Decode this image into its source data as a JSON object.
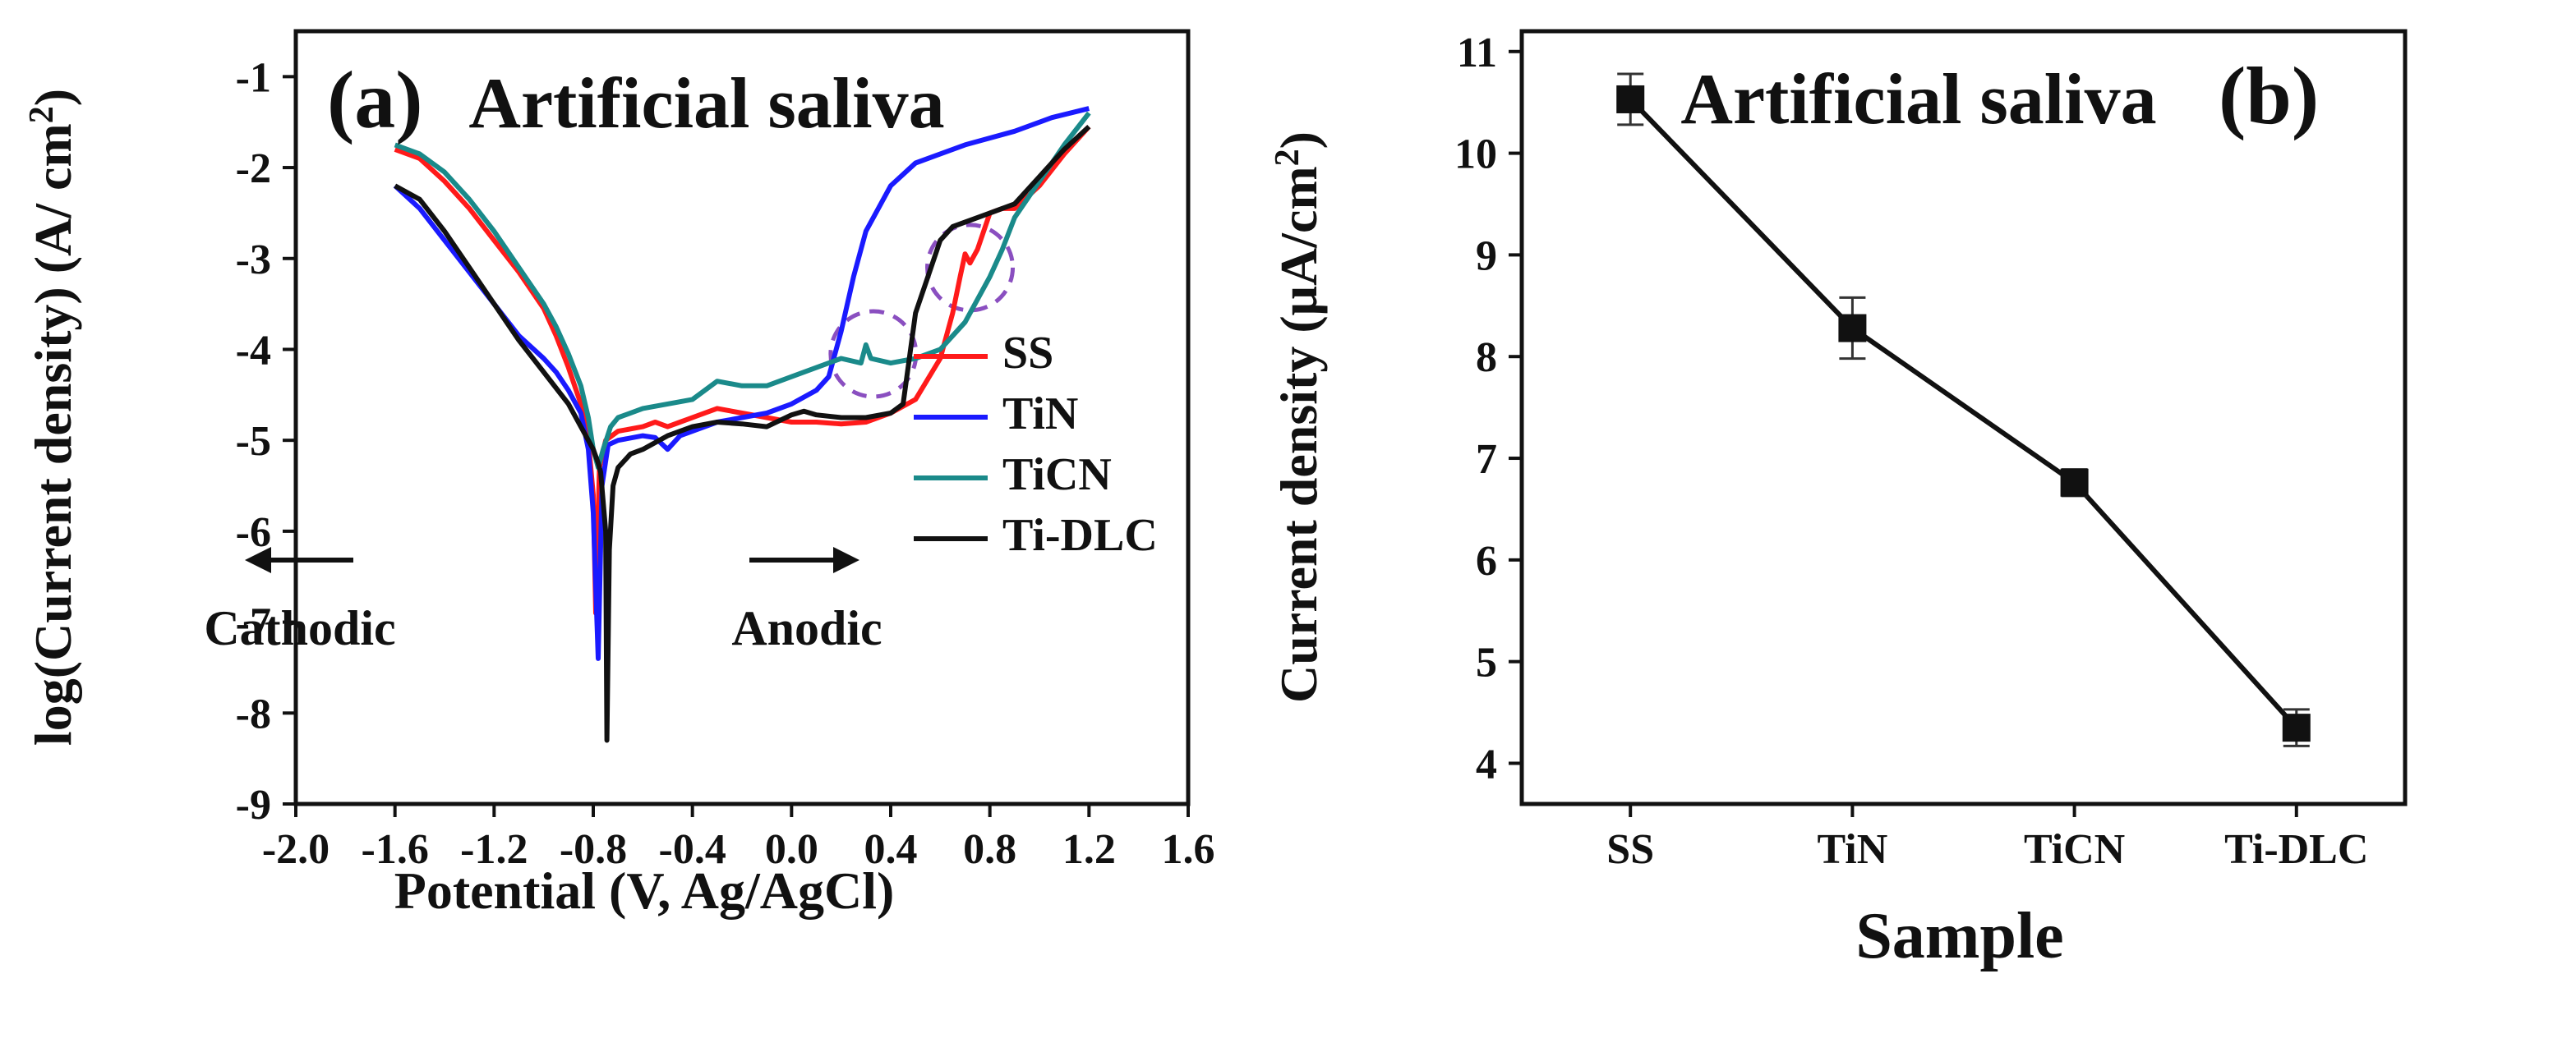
{
  "chart_data": [
    {
      "panel_label": "(a)",
      "title": "Artificial saliva",
      "type": "line",
      "xlabel": "Potential (V, Ag/AgCl)",
      "ylabel_main": "log(Current density) (A/ cm",
      "ylabel_sup": "2",
      "ylabel_end": ")",
      "xlim": [
        -2.0,
        1.6
      ],
      "ylim": [
        -9,
        -0.5
      ],
      "xticks": [
        -2.0,
        -1.6,
        -1.2,
        -0.8,
        -0.4,
        0.0,
        0.4,
        0.8,
        1.2,
        1.6
      ],
      "xtick_labels": [
        "-2.0",
        "-1.6",
        "-1.2",
        "-0.8",
        "-0.4",
        "0.0",
        "0.4",
        "0.8",
        "1.2",
        "1.6"
      ],
      "yticks": [
        -9,
        -8,
        -7,
        -6,
        -5,
        -4,
        -3,
        -2,
        -1
      ],
      "ytick_labels": [
        "-9",
        "-8",
        "-7",
        "-6",
        "-5",
        "-4",
        "-3",
        "-2",
        "-1"
      ],
      "annotations": {
        "cathodic": "Cathodic",
        "anodic": "Anodic"
      },
      "marked_regions": [
        {
          "x": 0.33,
          "y": -4.05
        },
        {
          "x": 0.72,
          "y": -3.1
        }
      ],
      "series": [
        {
          "name": "SS",
          "color": "#ff1a1a",
          "points": [
            [
              -1.6,
              -1.8
            ],
            [
              -1.5,
              -1.9
            ],
            [
              -1.4,
              -2.15
            ],
            [
              -1.3,
              -2.45
            ],
            [
              -1.2,
              -2.8
            ],
            [
              -1.1,
              -3.15
            ],
            [
              -1.0,
              -3.55
            ],
            [
              -0.95,
              -3.85
            ],
            [
              -0.9,
              -4.2
            ],
            [
              -0.85,
              -4.6
            ],
            [
              -0.82,
              -5.0
            ],
            [
              -0.8,
              -5.6
            ],
            [
              -0.79,
              -6.9
            ],
            [
              -0.775,
              -5.3
            ],
            [
              -0.75,
              -5.0
            ],
            [
              -0.7,
              -4.9
            ],
            [
              -0.6,
              -4.85
            ],
            [
              -0.55,
              -4.8
            ],
            [
              -0.5,
              -4.85
            ],
            [
              -0.45,
              -4.8
            ],
            [
              -0.3,
              -4.65
            ],
            [
              -0.2,
              -4.7
            ],
            [
              -0.1,
              -4.75
            ],
            [
              0.0,
              -4.8
            ],
            [
              0.1,
              -4.8
            ],
            [
              0.2,
              -4.82
            ],
            [
              0.3,
              -4.8
            ],
            [
              0.4,
              -4.7
            ],
            [
              0.5,
              -4.55
            ],
            [
              0.6,
              -4.1
            ],
            [
              0.65,
              -3.6
            ],
            [
              0.68,
              -3.2
            ],
            [
              0.7,
              -2.95
            ],
            [
              0.72,
              -3.05
            ],
            [
              0.75,
              -2.9
            ],
            [
              0.8,
              -2.5
            ],
            [
              0.85,
              -2.45
            ],
            [
              0.9,
              -2.45
            ],
            [
              1.0,
              -2.2
            ],
            [
              1.1,
              -1.85
            ],
            [
              1.2,
              -1.55
            ]
          ]
        },
        {
          "name": "TiN",
          "color": "#1a1aff",
          "points": [
            [
              -1.6,
              -2.2
            ],
            [
              -1.5,
              -2.45
            ],
            [
              -1.4,
              -2.8
            ],
            [
              -1.3,
              -3.15
            ],
            [
              -1.2,
              -3.5
            ],
            [
              -1.1,
              -3.85
            ],
            [
              -1.0,
              -4.1
            ],
            [
              -0.95,
              -4.25
            ],
            [
              -0.9,
              -4.45
            ],
            [
              -0.85,
              -4.7
            ],
            [
              -0.82,
              -5.1
            ],
            [
              -0.8,
              -5.8
            ],
            [
              -0.78,
              -7.4
            ],
            [
              -0.765,
              -5.5
            ],
            [
              -0.74,
              -5.05
            ],
            [
              -0.7,
              -5.0
            ],
            [
              -0.6,
              -4.95
            ],
            [
              -0.55,
              -4.97
            ],
            [
              -0.5,
              -5.1
            ],
            [
              -0.45,
              -4.95
            ],
            [
              -0.4,
              -4.9
            ],
            [
              -0.3,
              -4.8
            ],
            [
              -0.2,
              -4.75
            ],
            [
              -0.1,
              -4.7
            ],
            [
              0.0,
              -4.6
            ],
            [
              0.1,
              -4.45
            ],
            [
              0.15,
              -4.3
            ],
            [
              0.2,
              -3.8
            ],
            [
              0.25,
              -3.2
            ],
            [
              0.3,
              -2.7
            ],
            [
              0.4,
              -2.2
            ],
            [
              0.5,
              -1.95
            ],
            [
              0.7,
              -1.75
            ],
            [
              0.9,
              -1.6
            ],
            [
              1.05,
              -1.45
            ],
            [
              1.2,
              -1.35
            ]
          ]
        },
        {
          "name": "TiCN",
          "color": "#1a8a8a",
          "points": [
            [
              -1.6,
              -1.75
            ],
            [
              -1.5,
              -1.85
            ],
            [
              -1.4,
              -2.05
            ],
            [
              -1.3,
              -2.35
            ],
            [
              -1.2,
              -2.7
            ],
            [
              -1.1,
              -3.1
            ],
            [
              -1.0,
              -3.5
            ],
            [
              -0.95,
              -3.75
            ],
            [
              -0.9,
              -4.05
            ],
            [
              -0.85,
              -4.4
            ],
            [
              -0.82,
              -4.75
            ],
            [
              -0.8,
              -5.1
            ],
            [
              -0.78,
              -5.3
            ],
            [
              -0.76,
              -5.1
            ],
            [
              -0.73,
              -4.85
            ],
            [
              -0.7,
              -4.75
            ],
            [
              -0.6,
              -4.65
            ],
            [
              -0.5,
              -4.6
            ],
            [
              -0.4,
              -4.55
            ],
            [
              -0.3,
              -4.35
            ],
            [
              -0.2,
              -4.4
            ],
            [
              -0.1,
              -4.4
            ],
            [
              0.0,
              -4.3
            ],
            [
              0.1,
              -4.2
            ],
            [
              0.2,
              -4.1
            ],
            [
              0.28,
              -4.15
            ],
            [
              0.3,
              -3.95
            ],
            [
              0.32,
              -4.1
            ],
            [
              0.4,
              -4.15
            ],
            [
              0.5,
              -4.1
            ],
            [
              0.6,
              -4.0
            ],
            [
              0.7,
              -3.7
            ],
            [
              0.8,
              -3.2
            ],
            [
              0.85,
              -2.9
            ],
            [
              0.9,
              -2.55
            ],
            [
              1.0,
              -2.15
            ],
            [
              1.1,
              -1.75
            ],
            [
              1.2,
              -1.4
            ]
          ]
        },
        {
          "name": "Ti-DLC",
          "color": "#111111",
          "points": [
            [
              -1.6,
              -2.2
            ],
            [
              -1.5,
              -2.35
            ],
            [
              -1.4,
              -2.7
            ],
            [
              -1.3,
              -3.1
            ],
            [
              -1.2,
              -3.5
            ],
            [
              -1.1,
              -3.9
            ],
            [
              -1.0,
              -4.25
            ],
            [
              -0.9,
              -4.6
            ],
            [
              -0.85,
              -4.85
            ],
            [
              -0.8,
              -5.1
            ],
            [
              -0.78,
              -5.25
            ],
            [
              -0.77,
              -5.35
            ],
            [
              -0.75,
              -6.0
            ],
            [
              -0.745,
              -8.3
            ],
            [
              -0.735,
              -6.2
            ],
            [
              -0.72,
              -5.5
            ],
            [
              -0.7,
              -5.3
            ],
            [
              -0.65,
              -5.15
            ],
            [
              -0.6,
              -5.1
            ],
            [
              -0.5,
              -4.95
            ],
            [
              -0.4,
              -4.85
            ],
            [
              -0.3,
              -4.8
            ],
            [
              -0.2,
              -4.82
            ],
            [
              -0.1,
              -4.85
            ],
            [
              0.0,
              -4.72
            ],
            [
              0.05,
              -4.68
            ],
            [
              0.1,
              -4.72
            ],
            [
              0.2,
              -4.75
            ],
            [
              0.3,
              -4.75
            ],
            [
              0.4,
              -4.7
            ],
            [
              0.45,
              -4.6
            ],
            [
              0.5,
              -3.6
            ],
            [
              0.55,
              -3.2
            ],
            [
              0.6,
              -2.8
            ],
            [
              0.65,
              -2.65
            ],
            [
              0.7,
              -2.6
            ],
            [
              0.8,
              -2.5
            ],
            [
              0.9,
              -2.4
            ],
            [
              1.0,
              -2.1
            ],
            [
              1.1,
              -1.8
            ],
            [
              1.2,
              -1.55
            ]
          ]
        }
      ]
    },
    {
      "panel_label": "(b)",
      "title": "Artificial saliva",
      "type": "line",
      "xlabel": "Sample",
      "ylabel_main": "Current density (μA/cm",
      "ylabel_sup": "2",
      "ylabel_end": ")",
      "categories": [
        "SS",
        "TiN",
        "TiCN",
        "Ti-DLC"
      ],
      "ylim": [
        3.6,
        11.2
      ],
      "yticks": [
        4,
        5,
        6,
        7,
        8,
        9,
        10,
        11
      ],
      "ytick_labels": [
        "4",
        "5",
        "6",
        "7",
        "8",
        "9",
        "10",
        "11"
      ],
      "series": [
        {
          "name": "Current density",
          "values": [
            10.53,
            8.28,
            6.76,
            4.35
          ],
          "errors": [
            0.25,
            0.3,
            0.13,
            0.18
          ]
        }
      ]
    }
  ]
}
